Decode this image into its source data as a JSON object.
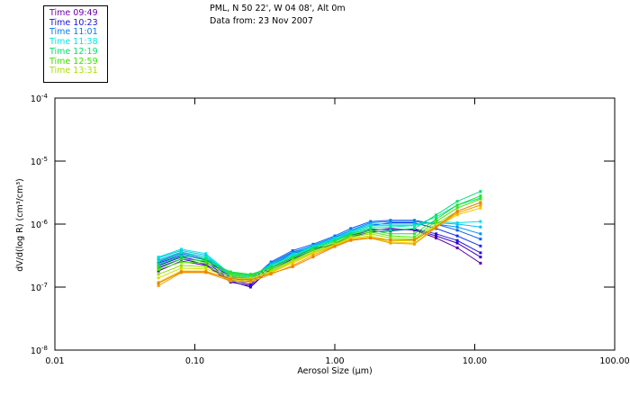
{
  "header": {
    "title_line1": "PML, N 50 22', W 04 08', Alt 0m",
    "title_line2": "Data from: 23 Nov 2007"
  },
  "chart_data": {
    "type": "line",
    "title": "PML, N 50 22', W 04 08', Alt 0m",
    "subtitle": "Data from: 23 Nov 2007",
    "xlabel": "Aerosol Size (µm)",
    "ylabel": "dV/d(log R)  (cm³/cm³)",
    "xscale": "log",
    "yscale": "log",
    "xlim": [
      0.01,
      100
    ],
    "ylim": [
      1e-08,
      0.0001
    ],
    "grid": false,
    "legend_position": "top-left",
    "x_ticks": [
      {
        "value": 0.01,
        "label": "0.01"
      },
      {
        "value": 0.1,
        "label": "0.10"
      },
      {
        "value": 1,
        "label": "1.00"
      },
      {
        "value": 10,
        "label": "10.00"
      },
      {
        "value": 100,
        "label": "100.00"
      }
    ],
    "y_ticks": [
      {
        "value": 0.0001,
        "base": "10",
        "exp": "-4"
      },
      {
        "value": 1e-05,
        "base": "10",
        "exp": "-5"
      },
      {
        "value": 1e-06,
        "base": "10",
        "exp": "-6"
      },
      {
        "value": 1e-07,
        "base": "10",
        "exp": "-7"
      },
      {
        "value": 1e-08,
        "base": "10",
        "exp": "-8"
      }
    ],
    "legend": [
      {
        "label": "Time 09:49",
        "color": "#6a00b0"
      },
      {
        "label": "Time 10:23",
        "color": "#1a10e0"
      },
      {
        "label": "Time 11:01",
        "color": "#0a7af0"
      },
      {
        "label": "Time 11:38",
        "color": "#00e8e8"
      },
      {
        "label": "Time 12:19",
        "color": "#00e070"
      },
      {
        "label": "Time 12:59",
        "color": "#40e000"
      },
      {
        "label": "Time 13:31",
        "color": "#a8e000"
      }
    ],
    "x": [
      0.055,
      0.08,
      0.12,
      0.18,
      0.25,
      0.35,
      0.5,
      0.7,
      1.0,
      1.3,
      1.8,
      2.5,
      3.7,
      5.3,
      7.5,
      11.0
    ],
    "series": [
      {
        "name": "s1",
        "color": "#5a00a8",
        "values": [
          1.8e-07,
          2.6e-07,
          2.2e-07,
          1.2e-07,
          1.05e-07,
          1.9e-07,
          2.8e-07,
          3.8e-07,
          5e-07,
          6.5e-07,
          8e-07,
          8.5e-07,
          8e-07,
          6e-07,
          4.2e-07,
          2.4e-07
        ]
      },
      {
        "name": "s2",
        "color": "#3a00c8",
        "values": [
          2e-07,
          2.8e-07,
          2.3e-07,
          1.25e-07,
          1e-07,
          2e-07,
          3e-07,
          4e-07,
          4.8e-07,
          6.6e-07,
          8.2e-07,
          8.3e-07,
          8.2e-07,
          6.5e-07,
          5e-07,
          3e-07
        ]
      },
      {
        "name": "s3",
        "color": "#2010e0",
        "values": [
          2.2e-07,
          3e-07,
          2.5e-07,
          1.3e-07,
          1.1e-07,
          2.2e-07,
          3.4e-07,
          4.2e-07,
          4.5e-07,
          6.2e-07,
          7.5e-07,
          7.8e-07,
          8.4e-07,
          7e-07,
          5.5e-07,
          3.5e-07
        ]
      },
      {
        "name": "s4",
        "color": "#1030f0",
        "values": [
          2.4e-07,
          3.2e-07,
          2.7e-07,
          1.4e-07,
          1.2e-07,
          2.4e-07,
          3.6e-07,
          4.5e-07,
          5.5e-07,
          7.5e-07,
          9.5e-07,
          1.05e-06,
          1.05e-06,
          8.5e-07,
          6.5e-07,
          4.5e-07
        ]
      },
      {
        "name": "s5",
        "color": "#0a60f0",
        "values": [
          2.5e-07,
          3.4e-07,
          2.8e-07,
          1.45e-07,
          1.3e-07,
          2.5e-07,
          3.8e-07,
          4.8e-07,
          6.5e-07,
          8.5e-07,
          1.1e-06,
          1.15e-06,
          1.15e-06,
          1e-06,
          8e-07,
          5.8e-07
        ]
      },
      {
        "name": "s6",
        "color": "#0090f0",
        "values": [
          2.7e-07,
          3.6e-07,
          3e-07,
          1.5e-07,
          1.35e-07,
          2.4e-07,
          3.5e-07,
          4.6e-07,
          6.2e-07,
          8e-07,
          1.05e-06,
          1.1e-06,
          1.1e-06,
          1e-06,
          9e-07,
          7e-07
        ]
      },
      {
        "name": "s7",
        "color": "#00c0f0",
        "values": [
          2.9e-07,
          3.8e-07,
          3.2e-07,
          1.55e-07,
          1.4e-07,
          2.3e-07,
          3.4e-07,
          4.5e-07,
          6e-07,
          7.8e-07,
          1e-06,
          1e-06,
          1e-06,
          1.05e-06,
          1e-06,
          9e-07
        ]
      },
      {
        "name": "s8",
        "color": "#00e0e0",
        "values": [
          3e-07,
          4e-07,
          3.4e-07,
          1.6e-07,
          1.45e-07,
          2.2e-07,
          3.2e-07,
          4.4e-07,
          5.8e-07,
          7.5e-07,
          9.5e-07,
          9.5e-07,
          9.5e-07,
          1.1e-06,
          1.05e-06,
          1.1e-06
        ]
      },
      {
        "name": "s9",
        "color": "#00e8b0",
        "values": [
          2.6e-07,
          3.5e-07,
          3e-07,
          1.65e-07,
          1.5e-07,
          2.2e-07,
          3.1e-07,
          4.3e-07,
          5.6e-07,
          7.2e-07,
          9e-07,
          9e-07,
          9.5e-07,
          1.3e-06,
          2e-06,
          2.6e-06
        ]
      },
      {
        "name": "s10",
        "color": "#00e070",
        "values": [
          2.3e-07,
          3.1e-07,
          2.8e-07,
          1.7e-07,
          1.55e-07,
          2.1e-07,
          3e-07,
          4.2e-07,
          5.5e-07,
          7e-07,
          8.5e-07,
          8e-07,
          8.5e-07,
          1.4e-06,
          2.3e-06,
          3.3e-06
        ]
      },
      {
        "name": "s11",
        "color": "#20e030",
        "values": [
          2.1e-07,
          2.8e-07,
          2.6e-07,
          1.75e-07,
          1.6e-07,
          2e-07,
          2.9e-07,
          4e-07,
          5.3e-07,
          6.8e-07,
          8e-07,
          7e-07,
          7e-07,
          1.2e-06,
          2e-06,
          2.8e-06
        ]
      },
      {
        "name": "s12",
        "color": "#50e000",
        "values": [
          1.9e-07,
          2.5e-07,
          2.4e-07,
          1.6e-07,
          1.5e-07,
          1.9e-07,
          2.7e-07,
          3.8e-07,
          5e-07,
          6.5e-07,
          7.5e-07,
          6.5e-07,
          6.2e-07,
          1.1e-06,
          1.8e-06,
          2.5e-06
        ]
      },
      {
        "name": "s13",
        "color": "#90e000",
        "values": [
          1.6e-07,
          2.2e-07,
          2.1e-07,
          1.5e-07,
          1.4e-07,
          1.8e-07,
          2.6e-07,
          3.6e-07,
          4.8e-07,
          6.2e-07,
          7e-07,
          6e-07,
          5.8e-07,
          1e-06,
          1.6e-06,
          2.2e-06
        ]
      },
      {
        "name": "s14",
        "color": "#d0e000",
        "values": [
          1.4e-07,
          2e-07,
          1.95e-07,
          1.4e-07,
          1.35e-07,
          1.75e-07,
          2.5e-07,
          3.5e-07,
          4.7e-07,
          6e-07,
          6.5e-07,
          5.5e-07,
          5.4e-07,
          9.5e-07,
          1.5e-06,
          2e-06
        ]
      },
      {
        "name": "s15",
        "color": "#f0c800",
        "values": [
          1.2e-07,
          1.8e-07,
          1.8e-07,
          1.3e-07,
          1.25e-07,
          1.7e-07,
          2.4e-07,
          3.4e-07,
          4.6e-07,
          5.8e-07,
          6.2e-07,
          5.2e-07,
          5e-07,
          9e-07,
          1.4e-06,
          1.8e-06
        ]
      },
      {
        "name": "s16",
        "color": "#f0a000",
        "values": [
          1.05e-07,
          1.7e-07,
          1.7e-07,
          1.25e-07,
          1.2e-07,
          1.6e-07,
          2.2e-07,
          3.2e-07,
          4.5e-07,
          5.6e-07,
          6e-07,
          5e-07,
          4.8e-07,
          8.8e-07,
          1.5e-06,
          2e-06
        ]
      },
      {
        "name": "s17",
        "color": "#f08000",
        "values": [
          1.15e-07,
          1.75e-07,
          1.75e-07,
          1.35e-07,
          1.3e-07,
          1.65e-07,
          2.1e-07,
          3e-07,
          4.4e-07,
          5.5e-07,
          6e-07,
          5.6e-07,
          5.6e-07,
          9e-07,
          1.6e-06,
          2.2e-06
        ]
      }
    ]
  }
}
